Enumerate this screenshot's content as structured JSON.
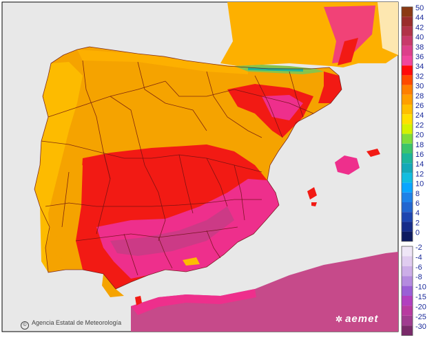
{
  "colors": {
    "sea": "#e8e8e8",
    "land_north": "#f5a300",
    "land_west": "#fdbb00",
    "land_hot": "#f21a14",
    "land_very_hot": "#ee2f8c",
    "land_extreme": "#cc3a86",
    "africa": "#c64a8a",
    "france": "#fdb000",
    "pyrenees": "#8ac34a",
    "borders": "#6a1111"
  },
  "legend": {
    "positive": [
      {
        "label": "50",
        "color": "#8b3a13"
      },
      {
        "label": "44",
        "color": "#9a2d2b"
      },
      {
        "label": "42",
        "color": "#b13348"
      },
      {
        "label": "40",
        "color": "#c8396a"
      },
      {
        "label": "38",
        "color": "#dd3f8a"
      },
      {
        "label": "36",
        "color": "#f0479d"
      },
      {
        "label": "34",
        "color": "#ff0a0a"
      },
      {
        "label": "32",
        "color": "#ff4a00"
      },
      {
        "label": "30",
        "color": "#ff7f00"
      },
      {
        "label": "28",
        "color": "#ff9f00"
      },
      {
        "label": "26",
        "color": "#ffbf00"
      },
      {
        "label": "24",
        "color": "#ffe000"
      },
      {
        "label": "22",
        "color": "#d4f200"
      },
      {
        "label": "20",
        "color": "#7fdc3a"
      },
      {
        "label": "18",
        "color": "#3cc46b"
      },
      {
        "label": "16",
        "color": "#1db59a"
      },
      {
        "label": "14",
        "color": "#14a9b8"
      },
      {
        "label": "12",
        "color": "#12bde0"
      },
      {
        "label": "10",
        "color": "#0aa6ff"
      },
      {
        "label": "8",
        "color": "#1e82e8"
      },
      {
        "label": "6",
        "color": "#2266d0"
      },
      {
        "label": "4",
        "color": "#1e45b0"
      },
      {
        "label": "2",
        "color": "#162c8a"
      },
      {
        "label": "0",
        "color": "#0d1a60"
      }
    ],
    "negative": [
      {
        "label": "-2",
        "color": "#efe6f7"
      },
      {
        "label": "-4",
        "color": "#e0ccf0"
      },
      {
        "label": "-6",
        "color": "#ccaee8"
      },
      {
        "label": "-8",
        "color": "#b48bdf"
      },
      {
        "label": "-10",
        "color": "#9a5fd6"
      },
      {
        "label": "-15",
        "color": "#b23fbf"
      },
      {
        "label": "-20",
        "color": "#b83aa0"
      },
      {
        "label": "-25",
        "color": "#a03c90"
      },
      {
        "label": "-30",
        "color": "#7a2a6a"
      }
    ]
  },
  "credit": "Agencia Estatal de Meteorología",
  "brand": "aemet",
  "copyright_symbol": "©"
}
